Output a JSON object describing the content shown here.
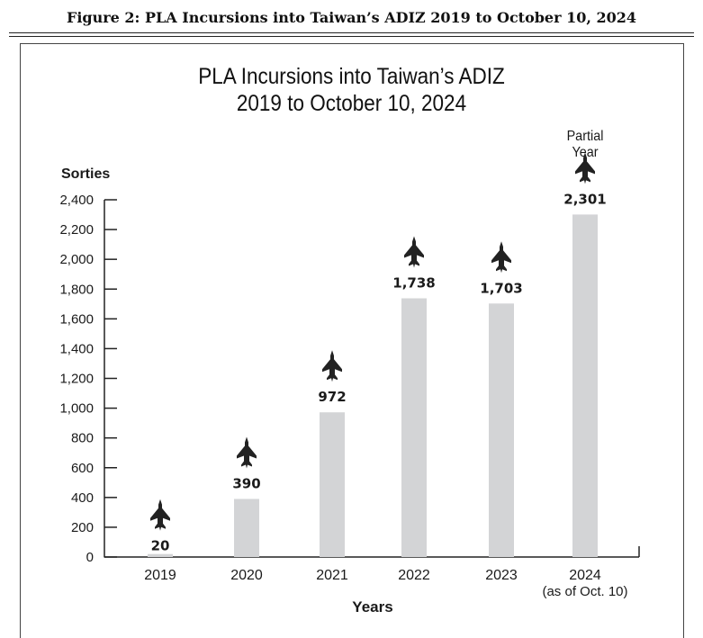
{
  "figure_caption": "Figure 2: PLA Incursions into Taiwan’s ADIZ 2019 to October 10, 2024",
  "chart_data": {
    "type": "bar",
    "title": [
      "PLA Incursions into Taiwan’s ADIZ",
      "2019 to October 10, 2024"
    ],
    "ylabel": "Sorties",
    "xlabel": "Years",
    "ylim": [
      0,
      2400
    ],
    "yticks": [
      0,
      200,
      400,
      600,
      800,
      1000,
      1200,
      1400,
      1600,
      1800,
      2000,
      2200,
      2400
    ],
    "categories": [
      "2019",
      "2020",
      "2021",
      "2022",
      "2023",
      "2024"
    ],
    "category_sublabels": [
      "",
      "",
      "",
      "",
      "",
      "(as of Oct. 10)"
    ],
    "values": [
      20,
      390,
      972,
      1738,
      1703,
      2301
    ],
    "data_labels": [
      "20",
      "390",
      "972",
      "1,738",
      "1,703",
      "2,301"
    ],
    "annotation": [
      "Partial",
      "Year"
    ],
    "grid": false,
    "bar_color": "#d3d4d6",
    "icon": "fighter-jet-icon"
  }
}
